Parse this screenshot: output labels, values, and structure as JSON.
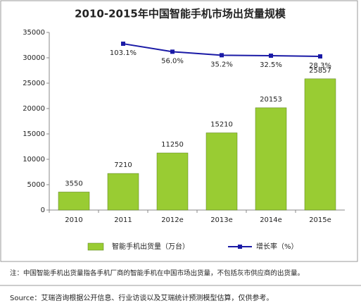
{
  "chart_data": {
    "type": "bar_line",
    "title": "2010-2015年中国智能手机市场出货量规模",
    "categories": [
      "2010",
      "2011",
      "2012e",
      "2013e",
      "2014e",
      "2015e"
    ],
    "series": [
      {
        "name": "智能手机出货量（万台）",
        "type": "bar",
        "color": "#99cc33",
        "values": [
          3550,
          7210,
          11250,
          15210,
          20153,
          25857
        ]
      },
      {
        "name": "增长率（%）",
        "type": "line",
        "axis": "y2",
        "color": "#1a1aa6",
        "values": [
          null,
          103.1,
          56.0,
          35.2,
          32.5,
          28.3
        ],
        "value_labels": [
          null,
          "103.1%",
          "56.0%",
          "35.2%",
          "32.5%",
          "28.3%"
        ]
      }
    ],
    "ylim": [
      0,
      35000
    ],
    "yticks": [
      0,
      5000,
      10000,
      15000,
      20000,
      25000,
      30000,
      35000
    ],
    "y2lim": [
      -880,
      170
    ],
    "grid": false,
    "legend": "bottom",
    "note": "注：中国智能手机出货量指各手机厂商的智能手机在中国市场出货量，不包括灰市供应商的出货量。",
    "source": "Source：艾瑞咨询根据公开信息、行业访谈以及艾瑞统计预测模型估算，仅供参考。"
  }
}
